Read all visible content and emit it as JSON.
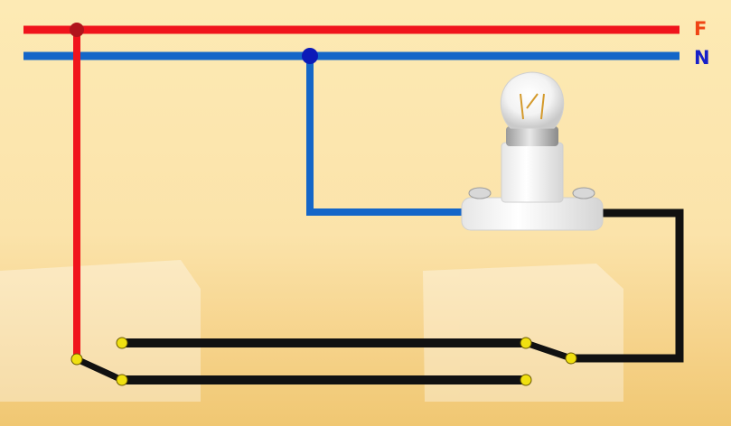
{
  "labels": {
    "phase": "F",
    "neutral": "N"
  },
  "colors": {
    "phase": "#f0141c",
    "neutral": "#1466c8",
    "switch_wire": "#111111",
    "terminal": "#f0e010",
    "junction_phase": "#b0141c",
    "junction_neutral": "#0c1ab8",
    "label_phase": "#f04414",
    "label_neutral": "#1820c8"
  },
  "icons": {
    "lamp": "light-bulb-icon",
    "switch_left": "two-way-switch-icon",
    "switch_right": "two-way-switch-icon"
  }
}
